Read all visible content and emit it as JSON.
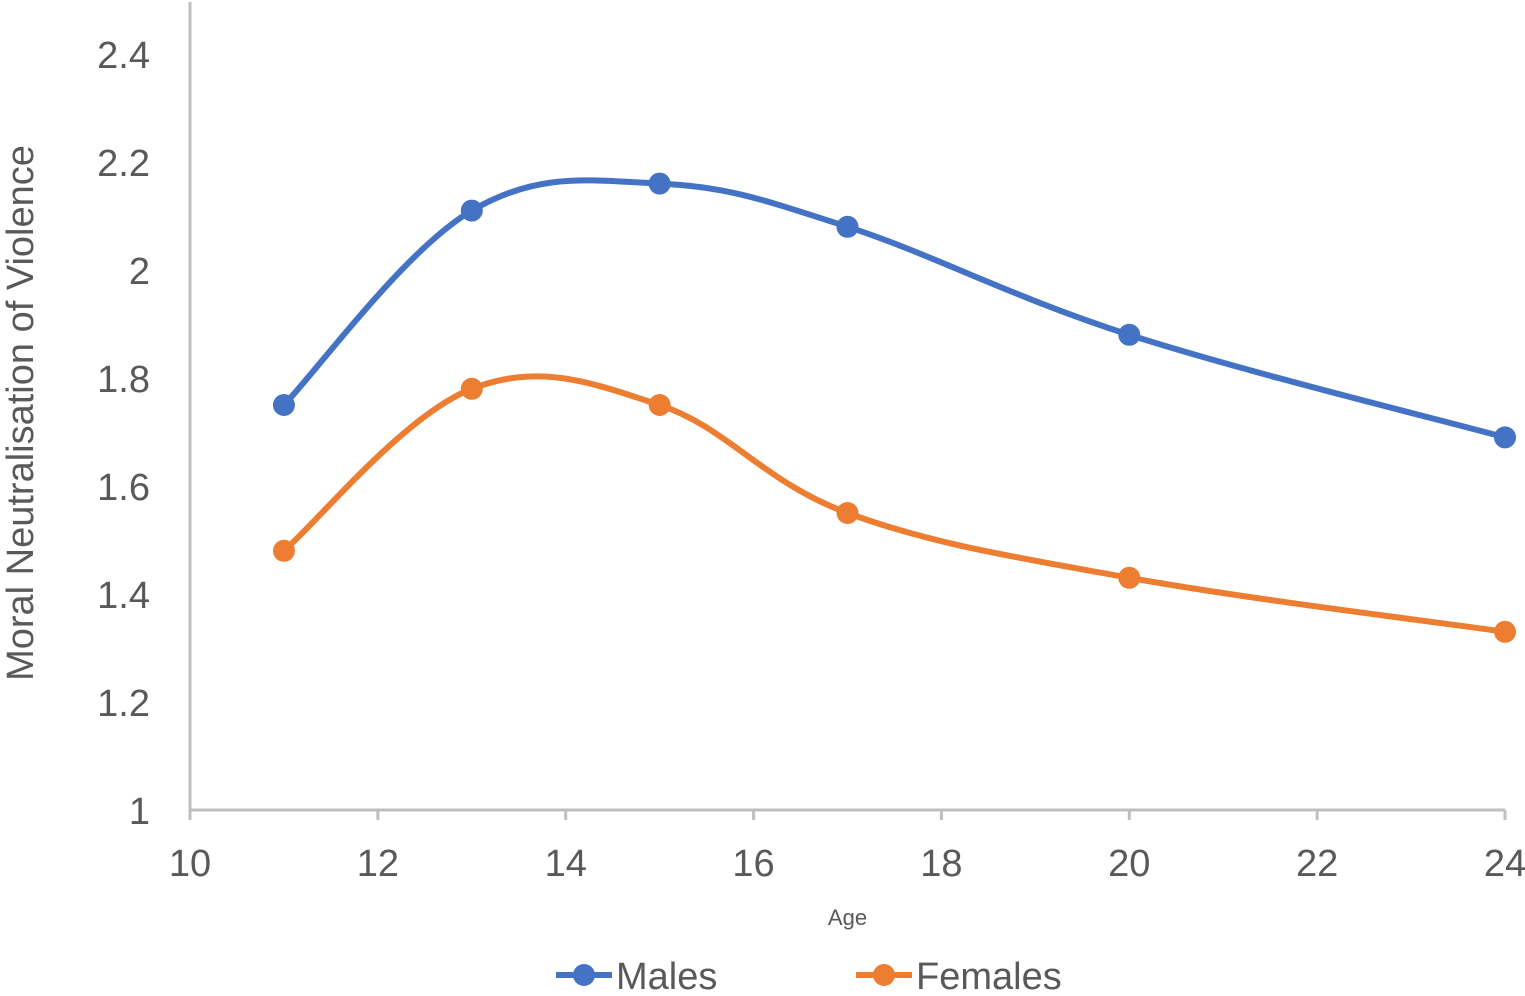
{
  "chart_data": {
    "type": "line",
    "xlabel": "Age",
    "ylabel": "Moral Neutralisation of Violence",
    "xlim": [
      10,
      24
    ],
    "ylim": [
      1,
      2.5
    ],
    "x_ticks": [
      10,
      12,
      14,
      16,
      18,
      20,
      22,
      24
    ],
    "y_ticks": [
      1,
      1.2,
      1.4,
      1.6,
      1.8,
      2,
      2.2,
      2.4
    ],
    "x_tick_labels": [
      "10",
      "12",
      "14",
      "16",
      "18",
      "20",
      "22",
      "24"
    ],
    "y_tick_labels": [
      "1",
      "1.2",
      "1.4",
      "1.6",
      "1.8",
      "2",
      "2.2",
      "2.4"
    ],
    "grid": false,
    "legend_position": "bottom",
    "smooth": true,
    "x": [
      11,
      13,
      15,
      17,
      20,
      24
    ],
    "series": [
      {
        "name": "Males",
        "color": "#4472C4",
        "values": [
          1.75,
          2.11,
          2.16,
          2.08,
          1.88,
          1.69
        ]
      },
      {
        "name": "Females",
        "color": "#ED7D31",
        "values": [
          1.48,
          1.78,
          1.75,
          1.55,
          1.43,
          1.33
        ]
      }
    ]
  }
}
